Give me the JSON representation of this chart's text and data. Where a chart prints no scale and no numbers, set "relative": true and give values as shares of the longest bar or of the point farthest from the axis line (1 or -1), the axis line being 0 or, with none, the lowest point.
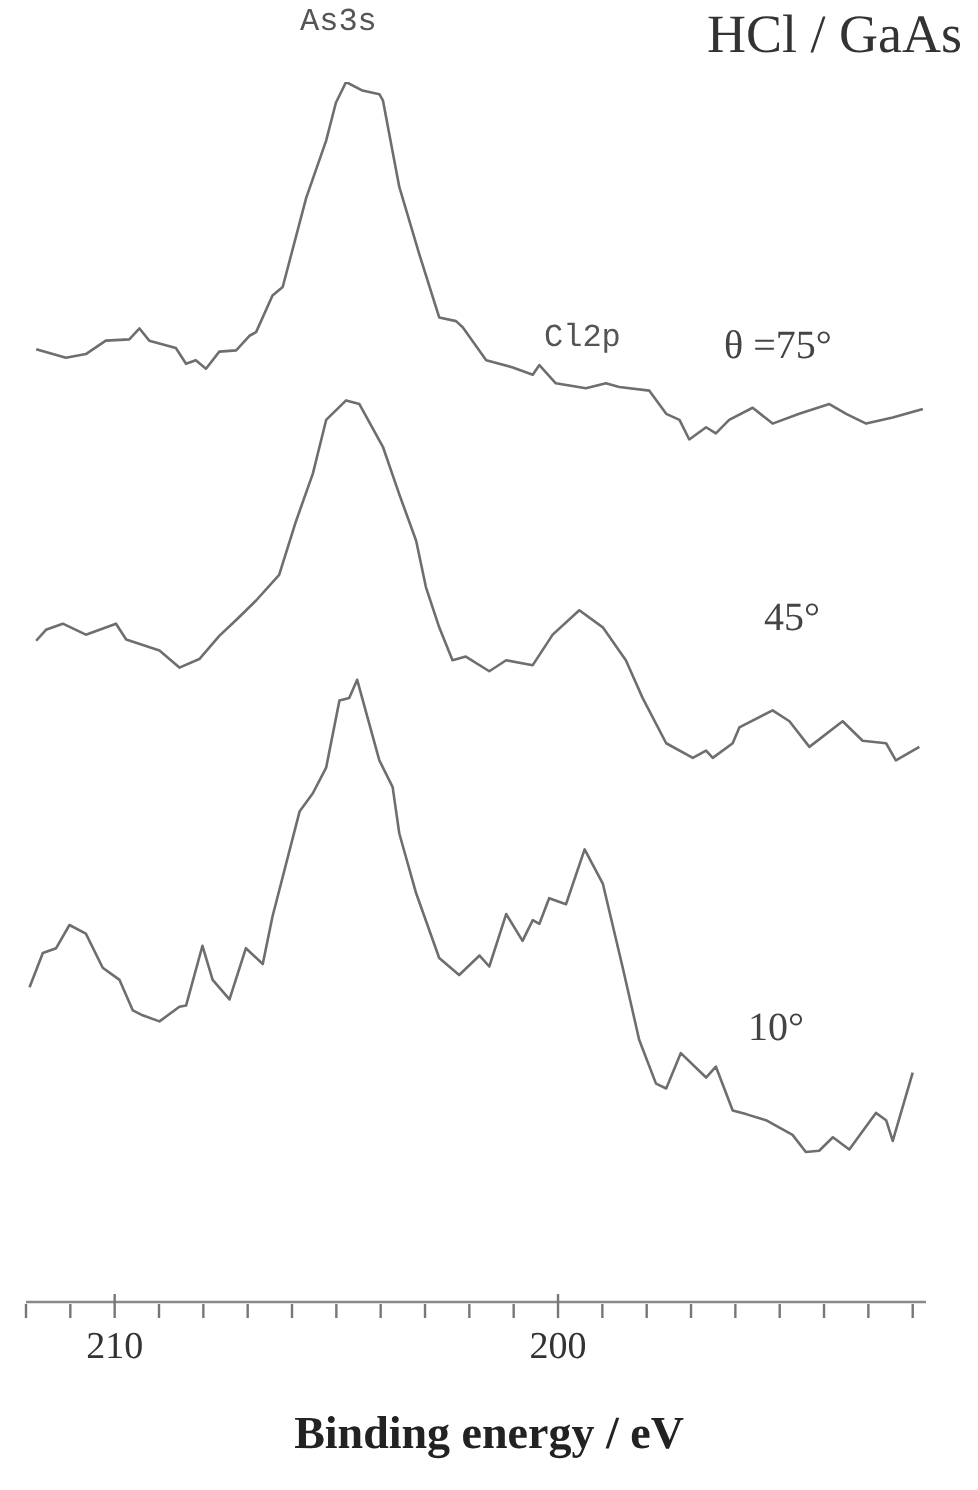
{
  "chart_data": {
    "type": "line",
    "relative": true,
    "title": "HCl / GaAs",
    "xlabel": "Binding energy / eV",
    "annotations": [
      "As3s",
      "Cl2p"
    ],
    "xlim": [
      212,
      191.7
    ],
    "xticks": [
      {
        "value": 212,
        "label": null
      },
      {
        "value": 211,
        "label": null
      },
      210,
      {
        "value": 209,
        "label": null
      },
      {
        "value": 208,
        "label": null
      },
      {
        "value": 207,
        "label": null
      },
      {
        "value": 206,
        "label": null
      },
      {
        "value": 205,
        "label": null
      },
      {
        "value": 204,
        "label": null
      },
      {
        "value": 203,
        "label": null
      },
      {
        "value": 202,
        "label": null
      },
      {
        "value": 201,
        "label": null
      },
      200,
      {
        "value": 199,
        "label": null
      },
      {
        "value": 198,
        "label": null
      },
      {
        "value": 197,
        "label": null
      },
      {
        "value": 196,
        "label": null
      },
      {
        "value": 195,
        "label": null
      },
      {
        "value": 194,
        "label": null
      },
      {
        "value": 193,
        "label": null
      },
      {
        "value": 192,
        "label": null
      }
    ],
    "tick_labels": "x",
    "marker": "none",
    "line_style": "solid",
    "series": [
      {
        "name": "θ =75°",
        "color": "#6e6e6e",
        "x": [
          211.77,
          211.1,
          210.65,
          210.2,
          209.67,
          209.44,
          209.22,
          208.62,
          208.39,
          208.17,
          207.94,
          207.64,
          207.26,
          206.96,
          206.81,
          206.44,
          206.21,
          205.68,
          205.23,
          205.01,
          204.78,
          204.41,
          204.03,
          203.95,
          203.58,
          203.13,
          202.68,
          202.3,
          202.15,
          201.62,
          201.02,
          200.57,
          200.42,
          200.05,
          199.37,
          198.92,
          198.62,
          197.94,
          197.56,
          197.26,
          197.04,
          196.66,
          196.44,
          196.14,
          195.61,
          195.16,
          194.56,
          193.88,
          193.5,
          193.05,
          192.45,
          191.77
        ],
        "values": [
          0.781,
          0.774,
          0.777,
          0.788,
          0.789,
          0.798,
          0.788,
          0.782,
          0.769,
          0.772,
          0.765,
          0.779,
          0.78,
          0.792,
          0.795,
          0.825,
          0.832,
          0.905,
          0.952,
          0.983,
          1,
          0.993,
          0.99,
          0.985,
          0.914,
          0.859,
          0.807,
          0.804,
          0.799,
          0.772,
          0.766,
          0.76,
          0.768,
          0.753,
          0.749,
          0.753,
          0.75,
          0.747,
          0.728,
          0.723,
          0.707,
          0.717,
          0.712,
          0.723,
          0.733,
          0.72,
          0.728,
          0.736,
          0.728,
          0.72,
          0.725,
          0.732
        ]
      },
      {
        "name": "45°",
        "color": "#6e6e6e",
        "x": [
          211.77,
          211.55,
          211.17,
          210.65,
          209.97,
          209.74,
          208.99,
          208.54,
          208.09,
          207.64,
          207.26,
          206.81,
          206.29,
          205.91,
          205.53,
          205.23,
          204.78,
          204.48,
          203.95,
          203.58,
          203.2,
          202.98,
          202.68,
          202.38,
          202.08,
          201.55,
          201.17,
          200.57,
          200.12,
          199.52,
          198.99,
          198.47,
          198.09,
          197.56,
          196.96,
          196.66,
          196.51,
          196.06,
          195.91,
          195.16,
          194.78,
          194.33,
          193.58,
          193.13,
          192.6,
          192.38,
          191.85
        ],
        "values": [
          0.542,
          0.551,
          0.556,
          0.547,
          0.556,
          0.543,
          0.534,
          0.52,
          0.527,
          0.546,
          0.559,
          0.575,
          0.596,
          0.64,
          0.679,
          0.723,
          0.739,
          0.736,
          0.701,
          0.662,
          0.624,
          0.586,
          0.553,
          0.526,
          0.529,
          0.517,
          0.526,
          0.522,
          0.547,
          0.567,
          0.553,
          0.526,
          0.495,
          0.458,
          0.446,
          0.452,
          0.446,
          0.458,
          0.471,
          0.485,
          0.476,
          0.455,
          0.476,
          0.46,
          0.458,
          0.444,
          0.455
        ]
      },
      {
        "name": "10°",
        "color": "#6e6e6e",
        "x": [
          211.92,
          211.62,
          211.32,
          211.02,
          210.65,
          210.27,
          209.89,
          209.59,
          209.37,
          208.99,
          208.54,
          208.39,
          208.02,
          207.79,
          207.41,
          207.04,
          206.66,
          206.44,
          205.83,
          205.53,
          205.23,
          204.93,
          204.71,
          204.53,
          204.03,
          203.73,
          203.58,
          203.2,
          202.68,
          202.23,
          201.77,
          201.55,
          201.17,
          200.8,
          200.57,
          200.42,
          200.2,
          199.82,
          199.4,
          198.99,
          198.54,
          198.17,
          197.79,
          197.56,
          197.23,
          196.66,
          196.44,
          196.06,
          195.76,
          195.31,
          194.71,
          194.41,
          194.11,
          193.8,
          193.43,
          192.83,
          192.6,
          192.45,
          192.0
        ],
        "values": [
          0.258,
          0.286,
          0.29,
          0.309,
          0.302,
          0.274,
          0.264,
          0.239,
          0.235,
          0.23,
          0.242,
          0.243,
          0.292,
          0.264,
          0.248,
          0.29,
          0.277,
          0.316,
          0.402,
          0.417,
          0.438,
          0.493,
          0.495,
          0.51,
          0.444,
          0.422,
          0.384,
          0.335,
          0.282,
          0.268,
          0.284,
          0.275,
          0.318,
          0.296,
          0.313,
          0.31,
          0.331,
          0.326,
          0.371,
          0.343,
          0.274,
          0.215,
          0.179,
          0.175,
          0.204,
          0.184,
          0.193,
          0.157,
          0.154,
          0.149,
          0.137,
          0.123,
          0.124,
          0.135,
          0.125,
          0.155,
          0.149,
          0.132,
          0.188
        ]
      }
    ]
  }
}
